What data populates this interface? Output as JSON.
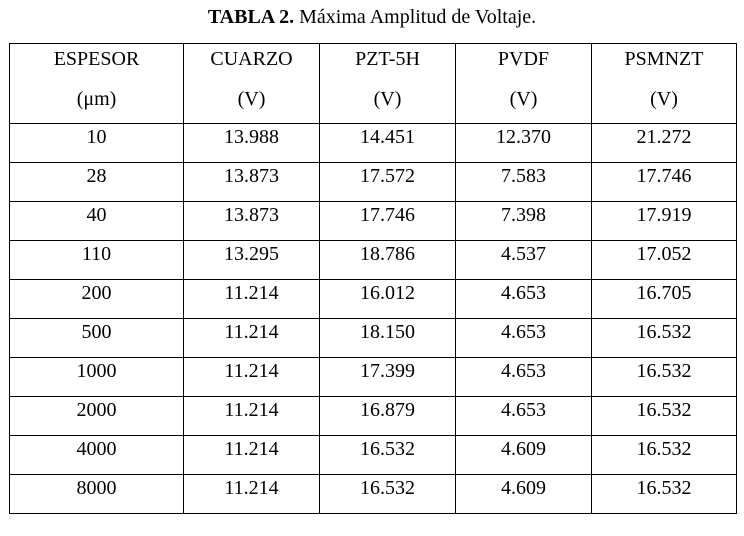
{
  "caption": {
    "label": "TABLA 2.",
    "text": "Máxima Amplitud de Voltaje."
  },
  "table": {
    "columns": [
      {
        "name": "ESPESOR",
        "unit": "(μm)"
      },
      {
        "name": "CUARZO",
        "unit": "(V)"
      },
      {
        "name": "PZT-5H",
        "unit": "(V)"
      },
      {
        "name": "PVDF",
        "unit": "(V)"
      },
      {
        "name": "PSMNZT",
        "unit": "(V)"
      }
    ],
    "rows": [
      [
        "10",
        "13.988",
        "14.451",
        "12.370",
        "21.272"
      ],
      [
        "28",
        "13.873",
        "17.572",
        "7.583",
        "17.746"
      ],
      [
        "40",
        "13.873",
        "17.746",
        "7.398",
        "17.919"
      ],
      [
        "110",
        "13.295",
        "18.786",
        "4.537",
        "17.052"
      ],
      [
        "200",
        "11.214",
        "16.012",
        "4.653",
        "16.705"
      ],
      [
        "500",
        "11.214",
        "18.150",
        "4.653",
        "16.532"
      ],
      [
        "1000",
        "11.214",
        "17.399",
        "4.653",
        "16.532"
      ],
      [
        "2000",
        "11.214",
        "16.879",
        "4.653",
        "16.532"
      ],
      [
        "4000",
        "11.214",
        "16.532",
        "4.609",
        "16.532"
      ],
      [
        "8000",
        "11.214",
        "16.532",
        "4.609",
        "16.532"
      ]
    ]
  }
}
